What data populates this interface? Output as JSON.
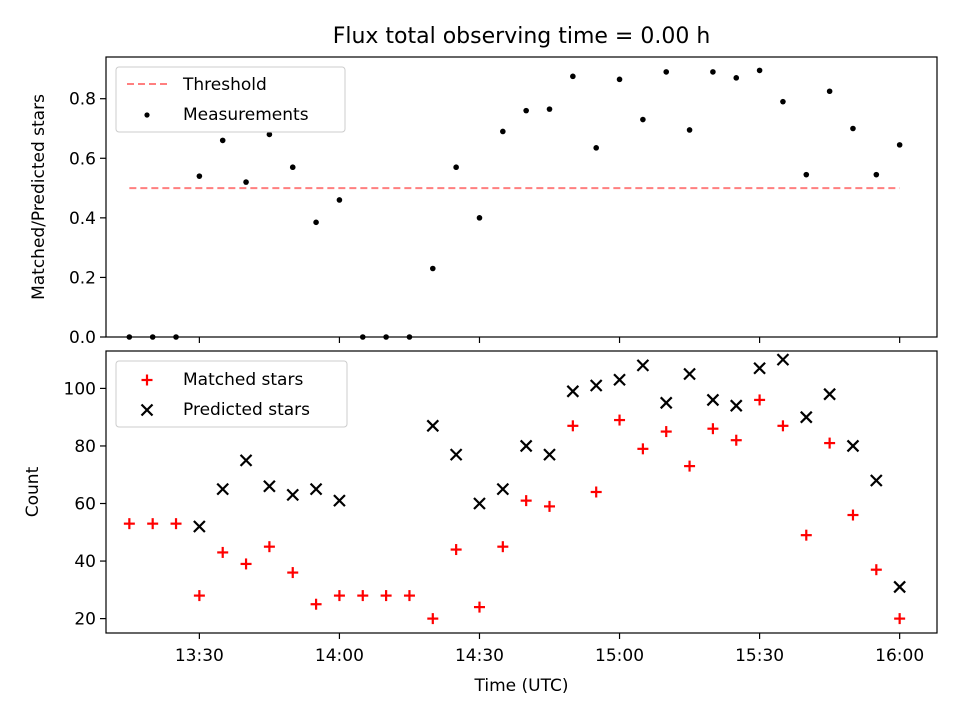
{
  "chart_data": [
    {
      "type": "scatter",
      "title": "Flux total observing time = 0.00 h",
      "xlabel": "",
      "ylabel": "Matched/Predicted stars",
      "xlim": [
        "13:10",
        "16:08"
      ],
      "ylim": [
        0,
        0.94
      ],
      "yticks": [
        0.0,
        0.2,
        0.4,
        0.6,
        0.8
      ],
      "ytick_labels": [
        "0.0",
        "0.2",
        "0.4",
        "0.6",
        "0.8"
      ],
      "grid": false,
      "legend": "upper-left",
      "threshold": {
        "name": "Threshold",
        "color": "#ff7f7f",
        "style": "dashed",
        "y": 0.5,
        "x": [
          "13:15",
          "16:00"
        ]
      },
      "series": [
        {
          "name": "Measurements",
          "color": "#000000",
          "marker": "dot",
          "x": [
            "13:15",
            "13:20",
            "13:25",
            "13:30",
            "13:35",
            "13:40",
            "13:45",
            "13:50",
            "13:55",
            "14:00",
            "14:05",
            "14:10",
            "14:15",
            "14:20",
            "14:25",
            "14:30",
            "14:35",
            "14:40",
            "14:45",
            "14:50",
            "14:55",
            "15:00",
            "15:05",
            "15:10",
            "15:15",
            "15:20",
            "15:25",
            "15:30",
            "15:35",
            "15:40",
            "15:45",
            "15:50",
            "15:55",
            "16:00"
          ],
          "y": [
            0.0,
            0.0,
            0.0,
            0.54,
            0.66,
            0.52,
            0.68,
            0.57,
            0.385,
            0.46,
            0.0,
            0.0,
            0.0,
            0.23,
            0.57,
            0.4,
            0.69,
            0.76,
            0.765,
            0.875,
            0.635,
            0.865,
            0.73,
            0.89,
            0.695,
            0.89,
            0.87,
            0.895,
            0.79,
            0.545,
            0.825,
            0.7,
            0.545,
            0.645
          ]
        }
      ]
    },
    {
      "type": "scatter",
      "title": "",
      "xlabel": "Time (UTC)",
      "ylabel": "Count",
      "xlim": [
        "13:10",
        "16:08"
      ],
      "ylim": [
        15,
        113
      ],
      "yticks": [
        20,
        40,
        60,
        80,
        100
      ],
      "ytick_labels": [
        "20",
        "40",
        "60",
        "80",
        "100"
      ],
      "xticks": [
        "13:30",
        "14:00",
        "14:30",
        "15:00",
        "15:30",
        "16:00"
      ],
      "xtick_labels": [
        "13:30",
        "14:00",
        "14:30",
        "15:00",
        "15:30",
        "16:00"
      ],
      "grid": false,
      "legend": "upper-left",
      "series": [
        {
          "name": "Matched stars",
          "color": "#ff0000",
          "marker": "plus",
          "x": [
            "13:15",
            "13:20",
            "13:25",
            "13:30",
            "13:35",
            "13:40",
            "13:45",
            "13:50",
            "13:55",
            "14:00",
            "14:05",
            "14:10",
            "14:15",
            "14:20",
            "14:25",
            "14:30",
            "14:35",
            "14:40",
            "14:45",
            "14:50",
            "14:55",
            "15:00",
            "15:05",
            "15:10",
            "15:15",
            "15:20",
            "15:25",
            "15:30",
            "15:35",
            "15:40",
            "15:45",
            "15:50",
            "15:55",
            "16:00"
          ],
          "y": [
            53,
            53,
            53,
            28,
            43,
            39,
            45,
            36,
            25,
            28,
            28,
            28,
            28,
            20,
            44,
            24,
            45,
            61,
            59,
            87,
            64,
            89,
            79,
            85,
            73,
            86,
            82,
            96,
            87,
            49,
            81,
            56,
            37,
            20
          ]
        },
        {
          "name": "Predicted stars",
          "color": "#000000",
          "marker": "x",
          "x": [
            "13:30",
            "13:35",
            "13:40",
            "13:45",
            "13:50",
            "13:55",
            "14:00",
            "14:20",
            "14:25",
            "14:30",
            "14:35",
            "14:40",
            "14:45",
            "14:50",
            "14:55",
            "15:00",
            "15:05",
            "15:10",
            "15:15",
            "15:20",
            "15:25",
            "15:30",
            "15:35",
            "15:40",
            "15:45",
            "15:50",
            "15:55",
            "16:00"
          ],
          "y": [
            52,
            65,
            75,
            66,
            63,
            65,
            61,
            87,
            77,
            60,
            65,
            80,
            77,
            99,
            101,
            103,
            108,
            95,
            105,
            96,
            94,
            107,
            110,
            90,
            98,
            80,
            68,
            31
          ]
        }
      ]
    }
  ]
}
